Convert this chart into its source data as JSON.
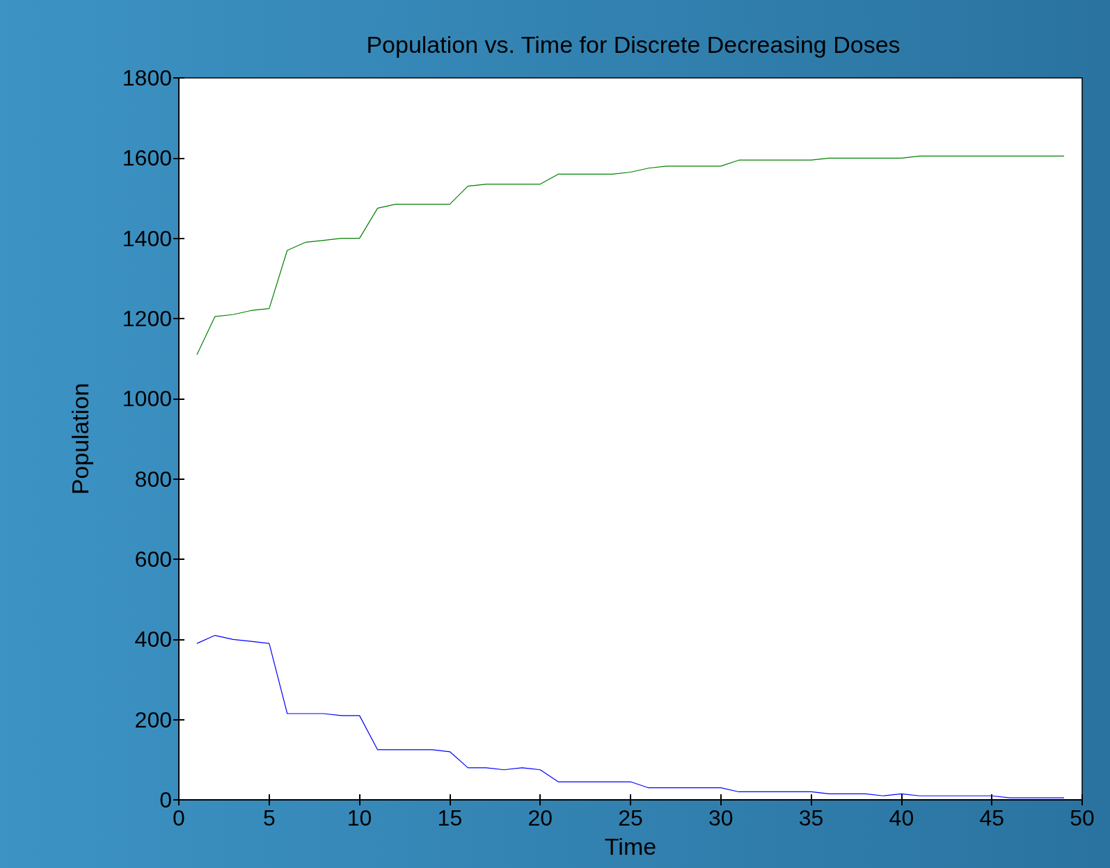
{
  "chart_data": {
    "type": "line",
    "title": "Population vs. Time for Discrete Decreasing Doses",
    "xlabel": "Time",
    "ylabel": "Population",
    "x": [
      1,
      2,
      3,
      4,
      5,
      6,
      7,
      8,
      9,
      10,
      11,
      12,
      13,
      14,
      15,
      16,
      17,
      18,
      19,
      20,
      21,
      22,
      23,
      24,
      25,
      26,
      27,
      28,
      29,
      30,
      31,
      32,
      33,
      34,
      35,
      36,
      37,
      38,
      39,
      40,
      41,
      42,
      43,
      44,
      45,
      46,
      47,
      48,
      49
    ],
    "series": [
      {
        "color": "#008000",
        "values": [
          1110,
          1205,
          1210,
          1220,
          1225,
          1370,
          1390,
          1395,
          1400,
          1400,
          1475,
          1485,
          1485,
          1485,
          1485,
          1530,
          1535,
          1535,
          1535,
          1535,
          1560,
          1560,
          1560,
          1560,
          1565,
          1575,
          1580,
          1580,
          1580,
          1580,
          1595,
          1595,
          1595,
          1595,
          1595,
          1600,
          1600,
          1600,
          1600,
          1600,
          1605,
          1605,
          1605,
          1605,
          1605,
          1605,
          1605,
          1605,
          1605
        ]
      },
      {
        "color": "#0000ff",
        "values": [
          390,
          410,
          400,
          395,
          390,
          215,
          215,
          215,
          210,
          210,
          125,
          125,
          125,
          125,
          120,
          80,
          80,
          75,
          80,
          75,
          45,
          45,
          45,
          45,
          45,
          30,
          30,
          30,
          30,
          30,
          20,
          20,
          20,
          20,
          20,
          15,
          15,
          15,
          10,
          15,
          10,
          10,
          10,
          10,
          10,
          5,
          5,
          5,
          5
        ]
      }
    ],
    "xlim": [
      0,
      50
    ],
    "xticks": [
      0,
      5,
      10,
      15,
      20,
      25,
      30,
      35,
      40,
      45,
      50
    ],
    "ylim": [
      0,
      1800
    ],
    "yticks": [
      0,
      200,
      400,
      600,
      800,
      1000,
      1200,
      1400,
      1600,
      1800
    ],
    "grid": false,
    "marker": "none",
    "line_style": "solid"
  }
}
